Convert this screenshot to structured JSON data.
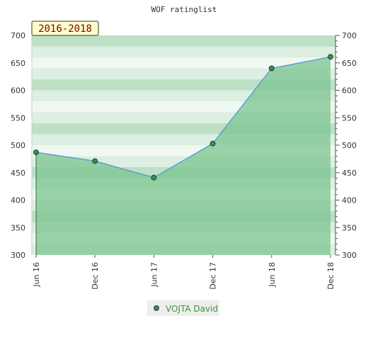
{
  "chart_data": {
    "type": "area",
    "title": "WOF ratinglist",
    "period_label": "2016-2018",
    "categories": [
      "Jun 16",
      "Dec 16",
      "Jun 17",
      "Dec 17",
      "Jun 18",
      "Dec 18"
    ],
    "series": [
      {
        "name": "VOJTA David",
        "values": [
          487,
          471,
          441,
          503,
          640,
          661
        ]
      }
    ],
    "ylim": [
      300,
      700
    ],
    "y_ticks": [
      300,
      350,
      400,
      450,
      500,
      550,
      600,
      650,
      700
    ],
    "y_tick_labels": [
      "300",
      "350",
      "400",
      "450",
      "500",
      "550",
      "600",
      "650",
      "700"
    ],
    "grid": true,
    "legend": "bottom-center",
    "colors": {
      "line": "#5a9fd4",
      "marker": "#3a8a5a",
      "area_fill": "#7cc48f",
      "band_dark": "#b5dcc0",
      "band_light": "#f0f8f2",
      "period_box_fill": "#ffffcc"
    }
  }
}
